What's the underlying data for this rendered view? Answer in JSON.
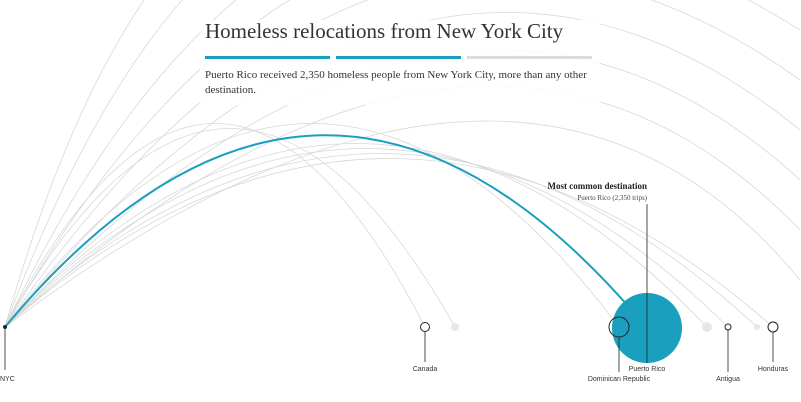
{
  "header": {
    "title": "Homeless relocations from New York City",
    "subtitle": "Puerto Rico received 2,350 homeless people from New York City, more than any other destination."
  },
  "annotation": {
    "heading": "Most common destination",
    "text": "Puerto Rico (2,350 trips)"
  },
  "origin": {
    "label": "NYC"
  },
  "destinations": [
    {
      "label": "Canada"
    },
    {
      "label": "Dominican Republic"
    },
    {
      "label": "Puerto Rico"
    },
    {
      "label": "Antigua"
    },
    {
      "label": "Honduras"
    }
  ]
}
